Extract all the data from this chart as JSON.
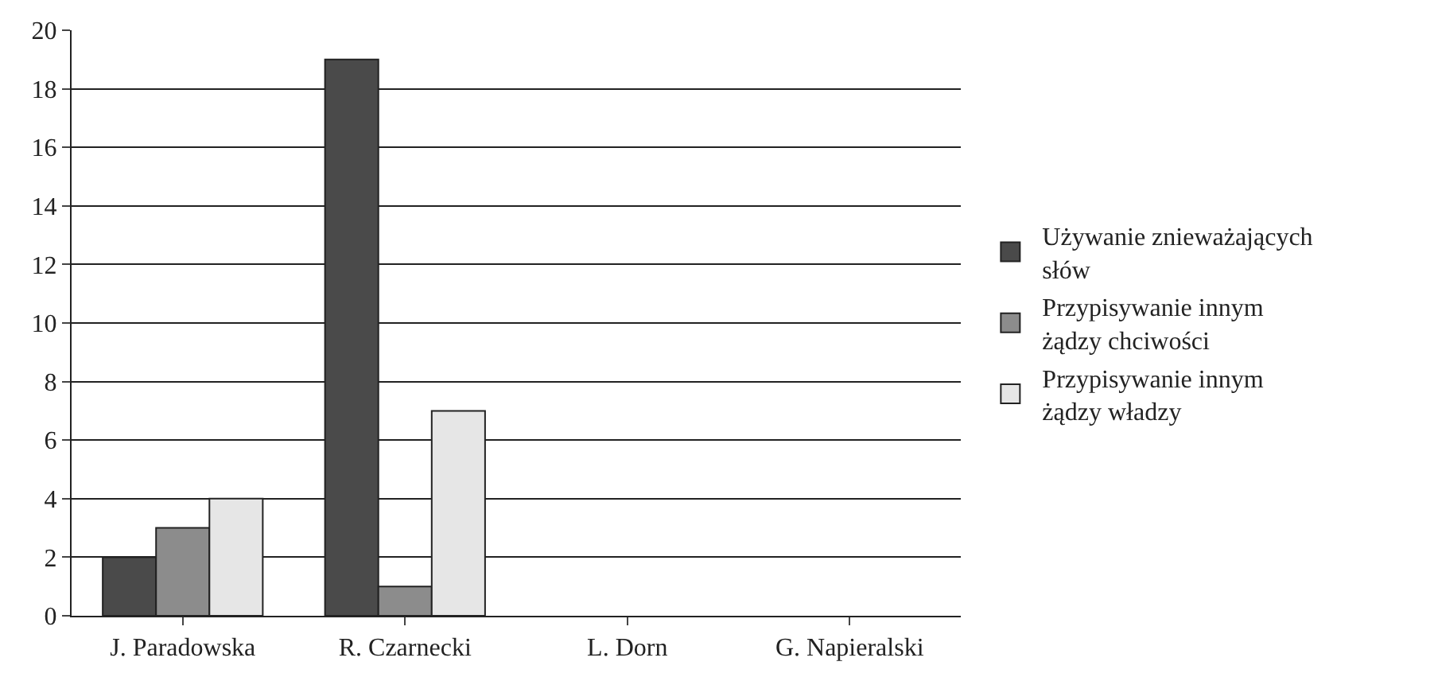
{
  "chart_data": {
    "type": "bar",
    "categories": [
      "J. Paradowska",
      "R. Czarnecki",
      "L. Dorn",
      "G. Napieralski"
    ],
    "series": [
      {
        "name": "Używanie znieważających słów",
        "color": "#4a4a4a",
        "values": [
          2,
          19,
          0,
          0
        ]
      },
      {
        "name": "Przypisywanie innym żądzy chciwości",
        "color": "#8c8c8c",
        "values": [
          3,
          1,
          0,
          0
        ]
      },
      {
        "name": "Przypisywanie innym żądzy władzy",
        "color": "#e6e6e6",
        "values": [
          4,
          7,
          0,
          0
        ]
      }
    ],
    "ylim": [
      0,
      20
    ],
    "yticks": [
      0,
      2,
      4,
      6,
      8,
      10,
      12,
      14,
      16,
      18,
      20
    ],
    "grid": "y",
    "legend": "right"
  }
}
